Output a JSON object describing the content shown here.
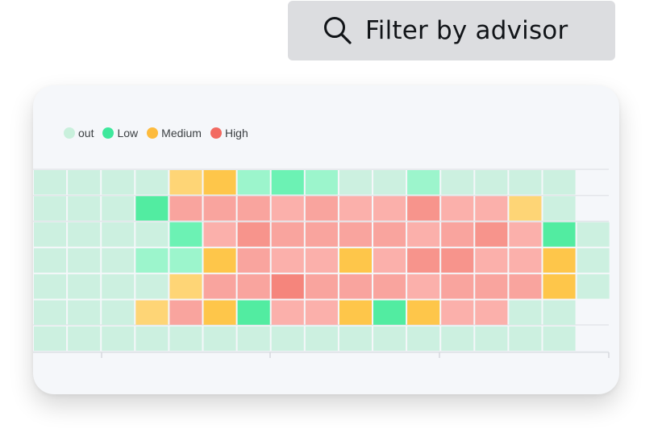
{
  "filter": {
    "label": "Filter by advisor",
    "icon": "search-icon"
  },
  "chart_data": {
    "type": "heatmap",
    "title": "",
    "legend": [
      {
        "label": "out",
        "color": "#c9f0dc"
      },
      {
        "label": "Low",
        "color": "#3ee89c"
      },
      {
        "label": "Medium",
        "color": "#fdbb3d"
      },
      {
        "label": "High",
        "color": "#f26a61"
      }
    ],
    "legend_position": "top-left",
    "palette": {
      "empty": "#f5f7fa",
      "out": "#ccf0e0",
      "low1": "#9cf5cc",
      "low2": "#6cf2b4",
      "low3": "#52eca1",
      "med1": "#fed576",
      "med2": "#fec64a",
      "high1": "#fbb0ab",
      "high2": "#f9a49e",
      "high3": "#f7948c",
      "high4": "#f5857c"
    },
    "rows": [
      [
        "out",
        "out",
        "out",
        "out",
        "med1",
        "med2",
        "low1",
        "low2",
        "low1",
        "out",
        "out",
        "low1",
        "out",
        "out",
        "out",
        "out",
        "empty"
      ],
      [
        "out",
        "out",
        "out",
        "low3",
        "high2",
        "high2",
        "high2",
        "high1",
        "high2",
        "high1",
        "high1",
        "high3",
        "high1",
        "high1",
        "med1",
        "out",
        "empty"
      ],
      [
        "out",
        "out",
        "out",
        "out",
        "low2",
        "high1",
        "high3",
        "high2",
        "high2",
        "high2",
        "high2",
        "high1",
        "high2",
        "high3",
        "high1",
        "low3",
        "out"
      ],
      [
        "out",
        "out",
        "out",
        "low1",
        "low1",
        "med2",
        "high2",
        "high1",
        "high1",
        "med2",
        "high1",
        "high3",
        "high3",
        "high1",
        "high1",
        "med2",
        "out"
      ],
      [
        "out",
        "out",
        "out",
        "out",
        "med1",
        "high2",
        "high2",
        "high4",
        "high2",
        "high2",
        "high2",
        "high1",
        "high2",
        "high2",
        "high2",
        "med2",
        "out"
      ],
      [
        "out",
        "out",
        "out",
        "med1",
        "high2",
        "med2",
        "low3",
        "high1",
        "high1",
        "med2",
        "low3",
        "med2",
        "high1",
        "high1",
        "out",
        "out",
        "empty"
      ],
      [
        "out",
        "out",
        "out",
        "out",
        "out",
        "out",
        "out",
        "out",
        "out",
        "out",
        "out",
        "out",
        "out",
        "out",
        "out",
        "out",
        "empty"
      ]
    ]
  }
}
